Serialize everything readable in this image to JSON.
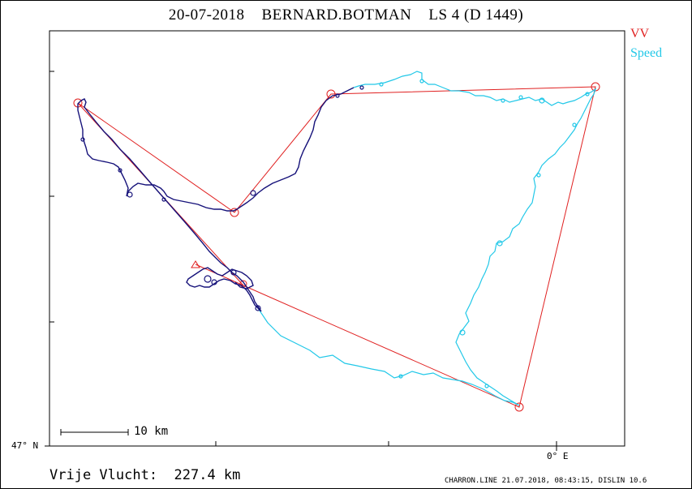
{
  "title": "20-07-2018    BERNARD.BOTMAN    LS 4 (D 1449)",
  "legend": {
    "vv_label": "VV",
    "speed_label": "Speed"
  },
  "colors": {
    "vv": "#e02020",
    "speed_fast": "#22c8e8",
    "speed_slow": "#16127a",
    "frame": "#000000"
  },
  "scale_bar": {
    "label": "10 km"
  },
  "axis": {
    "lat_label": "47° N",
    "lon_label": "0° E"
  },
  "distance_text": "Vrije Vlucht:  227.4 km",
  "footer_text": "CHARRON.LINE 21.07.2018, 08:43:15, DISLIN 10.6"
}
